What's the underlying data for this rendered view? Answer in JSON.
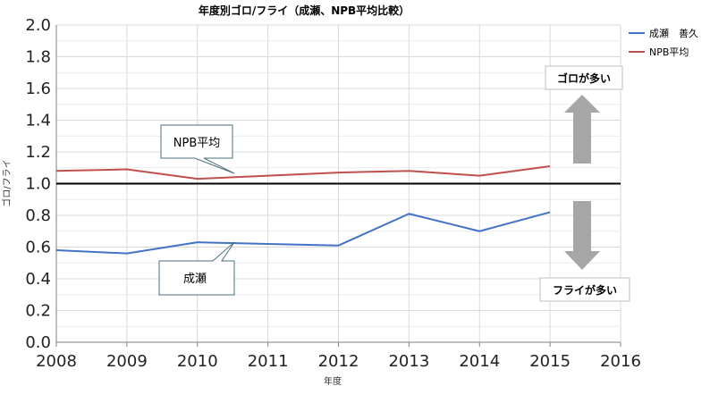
{
  "chart_data": {
    "type": "line",
    "title": "年度別ゴロ/フライ（成瀬、NPB平均比較）",
    "xlabel": "年度",
    "ylabel": "ゴロ/フライ",
    "xlim": [
      2008,
      2016
    ],
    "ylim": [
      0.0,
      2.0
    ],
    "x_ticks": [
      "2008",
      "2009",
      "2010",
      "2011",
      "2012",
      "2013",
      "2014",
      "2015",
      "2016"
    ],
    "y_ticks": [
      "0.0",
      "0.2",
      "0.4",
      "0.6",
      "0.8",
      "1.0",
      "1.2",
      "1.4",
      "1.6",
      "1.8",
      "2.0"
    ],
    "reference_line": 1.0,
    "grid": true,
    "series": [
      {
        "name": "成瀬　善久",
        "color": "#4472C4",
        "x": [
          2008,
          2009,
          2010,
          2011,
          2012,
          2013,
          2014,
          2015
        ],
        "values": [
          0.58,
          0.56,
          0.63,
          0.62,
          0.61,
          0.81,
          0.7,
          0.82
        ]
      },
      {
        "name": "NPB平均",
        "color": "#C0504D",
        "x": [
          2008,
          2009,
          2010,
          2011,
          2012,
          2013,
          2014,
          2015
        ],
        "values": [
          1.08,
          1.09,
          1.03,
          1.05,
          1.07,
          1.08,
          1.05,
          1.11
        ]
      }
    ],
    "legend_position": "top-right",
    "annotations": {
      "npb_callout": "NPB平均",
      "naruse_callout": "成瀬",
      "up_label": "ゴロが多い",
      "down_label": "フライが多い"
    }
  }
}
